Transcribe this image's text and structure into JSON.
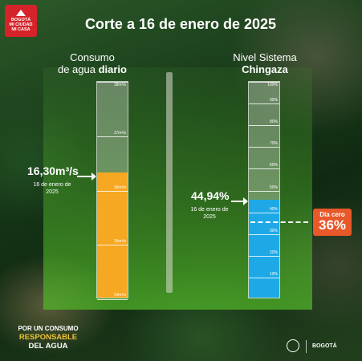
{
  "logo": {
    "line1": "BOGOTÁ",
    "line2": "MI CIUDAD",
    "line3": "MI CASA"
  },
  "title": "Corte a 16 de enero de 2025",
  "left_panel": {
    "heading_line1": "Consumo",
    "heading_plain": "de agua ",
    "heading_bold": "diario",
    "value": "16,30m³/s",
    "date": "16 de enero de 2025"
  },
  "right_panel": {
    "heading_line1": "Nivel Sistema",
    "heading_bold": "Chingaza",
    "value": "44,94%",
    "date": "16 de enero de 2025",
    "badge_label": "Día cero",
    "badge_value": "36%"
  },
  "slogan": {
    "line1": "POR UN CONSUMO",
    "line2": "RESPONSABLE",
    "line3": "DEL AGUA"
  },
  "footer": {
    "bogota": "BOGOTÁ"
  },
  "colors": {
    "consumption_fill": "#f7a823",
    "level_fill": "#1ea9e6",
    "badge": "#e8582a"
  },
  "chart_data": [
    {
      "type": "bar",
      "categories": [
        "Consumo de agua diario"
      ],
      "values": [
        16.3
      ],
      "unit": "m³/s",
      "ylim": [
        14,
        18
      ],
      "ticks": [
        "18m³/s",
        "17m³/s",
        "16m³/s",
        "15m³/s",
        "14m³/s"
      ],
      "tick_values": [
        18,
        17,
        16,
        15,
        14
      ],
      "fill_color": "#f7a823"
    },
    {
      "type": "bar",
      "categories": [
        "Nivel Sistema Chingaza"
      ],
      "values": [
        44.94
      ],
      "unit": "%",
      "ylim": [
        0,
        100
      ],
      "ticks": [
        "100%",
        "90%",
        "80%",
        "70%",
        "60%",
        "50%",
        "40%",
        "30%",
        "20%",
        "10%"
      ],
      "tick_values": [
        100,
        90,
        80,
        70,
        60,
        50,
        40,
        30,
        20,
        10
      ],
      "threshold": 36,
      "fill_color": "#1ea9e6"
    }
  ]
}
